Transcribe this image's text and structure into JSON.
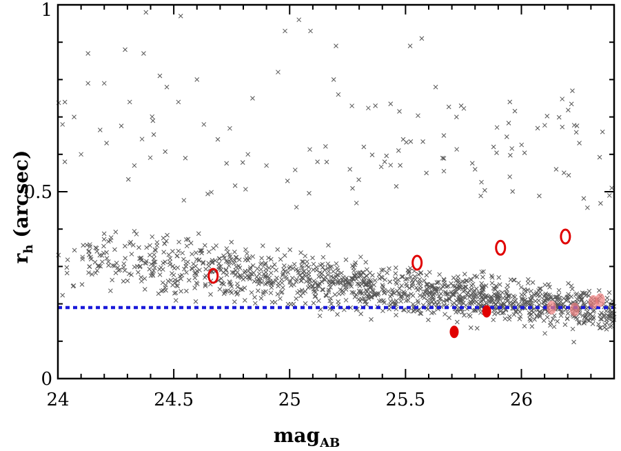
{
  "chart_data": {
    "type": "scatter",
    "title": "",
    "xlabel": "mag",
    "xlabel_subscript": "AB",
    "ylabel": "r",
    "ylabel_subscript": "h",
    "ylabel_suffix": "(arcsec)",
    "xlim": [
      24.0,
      26.4
    ],
    "ylim": [
      0,
      1
    ],
    "x_ticks": [
      {
        "value": 24,
        "label": "24"
      },
      {
        "value": 24.5,
        "label": "24.5"
      },
      {
        "value": 25,
        "label": "25"
      },
      {
        "value": 25.5,
        "label": "25.5"
      },
      {
        "value": 26,
        "label": "26"
      }
    ],
    "y_ticks": [
      {
        "value": 0,
        "label": "0"
      },
      {
        "value": 0.5,
        "label": "0.5"
      },
      {
        "value": 1,
        "label": "1"
      }
    ],
    "grid": false,
    "threshold_line": {
      "y": 0.19,
      "color": "#1a1ad9",
      "style": "dotted"
    },
    "background_population": {
      "marker": "x",
      "color": "#555555",
      "count": 1500,
      "description_seed": 7,
      "points": [
        [
          24.38,
          0.98
        ],
        [
          24.53,
          0.97
        ],
        [
          24.98,
          0.93
        ],
        [
          25.04,
          0.96
        ],
        [
          25.09,
          0.93
        ],
        [
          25.57,
          0.91
        ],
        [
          25.52,
          0.89
        ],
        [
          24.13,
          0.87
        ],
        [
          24.29,
          0.88
        ],
        [
          24.37,
          0.87
        ],
        [
          25.2,
          0.89
        ],
        [
          24.95,
          0.82
        ],
        [
          24.13,
          0.79
        ],
        [
          24.44,
          0.81
        ],
        [
          24.47,
          0.78
        ],
        [
          24.6,
          0.8
        ],
        [
          24.84,
          0.75
        ],
        [
          25.19,
          0.8
        ],
        [
          25.21,
          0.76
        ],
        [
          25.63,
          0.78
        ],
        [
          26.22,
          0.77
        ],
        [
          24.2,
          0.79
        ],
        [
          24.31,
          0.74
        ],
        [
          24.52,
          0.74
        ],
        [
          25.37,
          0.73
        ],
        [
          25.74,
          0.73
        ],
        [
          25.72,
          0.7
        ],
        [
          26.07,
          0.67
        ],
        [
          26.35,
          0.66
        ],
        [
          24.63,
          0.68
        ],
        [
          24.41,
          0.69
        ],
        [
          24.69,
          0.64
        ],
        [
          25.47,
          0.61
        ],
        [
          25.49,
          0.64
        ],
        [
          25.32,
          0.62
        ],
        [
          24.02,
          0.68
        ],
        [
          24.07,
          0.7
        ],
        [
          26.25,
          0.63
        ],
        [
          25.88,
          0.62
        ],
        [
          26.38,
          0.49
        ],
        [
          26.39,
          0.51
        ],
        [
          25.8,
          0.56
        ],
        [
          25.66,
          0.59
        ],
        [
          25.95,
          0.54
        ],
        [
          26.15,
          0.56
        ],
        [
          24.03,
          0.58
        ],
        [
          24.1,
          0.6
        ],
        [
          24.21,
          0.63
        ],
        [
          24.33,
          0.57
        ],
        [
          24.55,
          0.59
        ],
        [
          24.82,
          0.6
        ],
        [
          24.9,
          0.57
        ],
        [
          25.12,
          0.58
        ],
        [
          25.26,
          0.56
        ],
        [
          25.41,
          0.58
        ],
        [
          25.59,
          0.55
        ]
      ]
    },
    "highlighted_points": [
      {
        "x": 24.67,
        "y": 0.275,
        "style": "open-ellipse",
        "color": "#e00000"
      },
      {
        "x": 25.55,
        "y": 0.31,
        "style": "open-ellipse",
        "color": "#e00000"
      },
      {
        "x": 25.91,
        "y": 0.35,
        "style": "open-ellipse",
        "color": "#e00000"
      },
      {
        "x": 26.19,
        "y": 0.38,
        "style": "open-ellipse",
        "color": "#e00000"
      },
      {
        "x": 25.71,
        "y": 0.125,
        "style": "filled-ellipse",
        "color": "#e00000"
      },
      {
        "x": 25.85,
        "y": 0.18,
        "style": "filled-ellipse",
        "color": "#e00000"
      },
      {
        "x": 26.13,
        "y": 0.19,
        "style": "filled-ellipse-faint",
        "color": "#f08080"
      },
      {
        "x": 26.23,
        "y": 0.185,
        "style": "filled-ellipse-faint",
        "color": "#f08080"
      },
      {
        "x": 26.31,
        "y": 0.205,
        "style": "filled-ellipse-faint",
        "color": "#f08080"
      },
      {
        "x": 26.34,
        "y": 0.21,
        "style": "filled-ellipse-faint",
        "color": "#f08080"
      }
    ]
  }
}
